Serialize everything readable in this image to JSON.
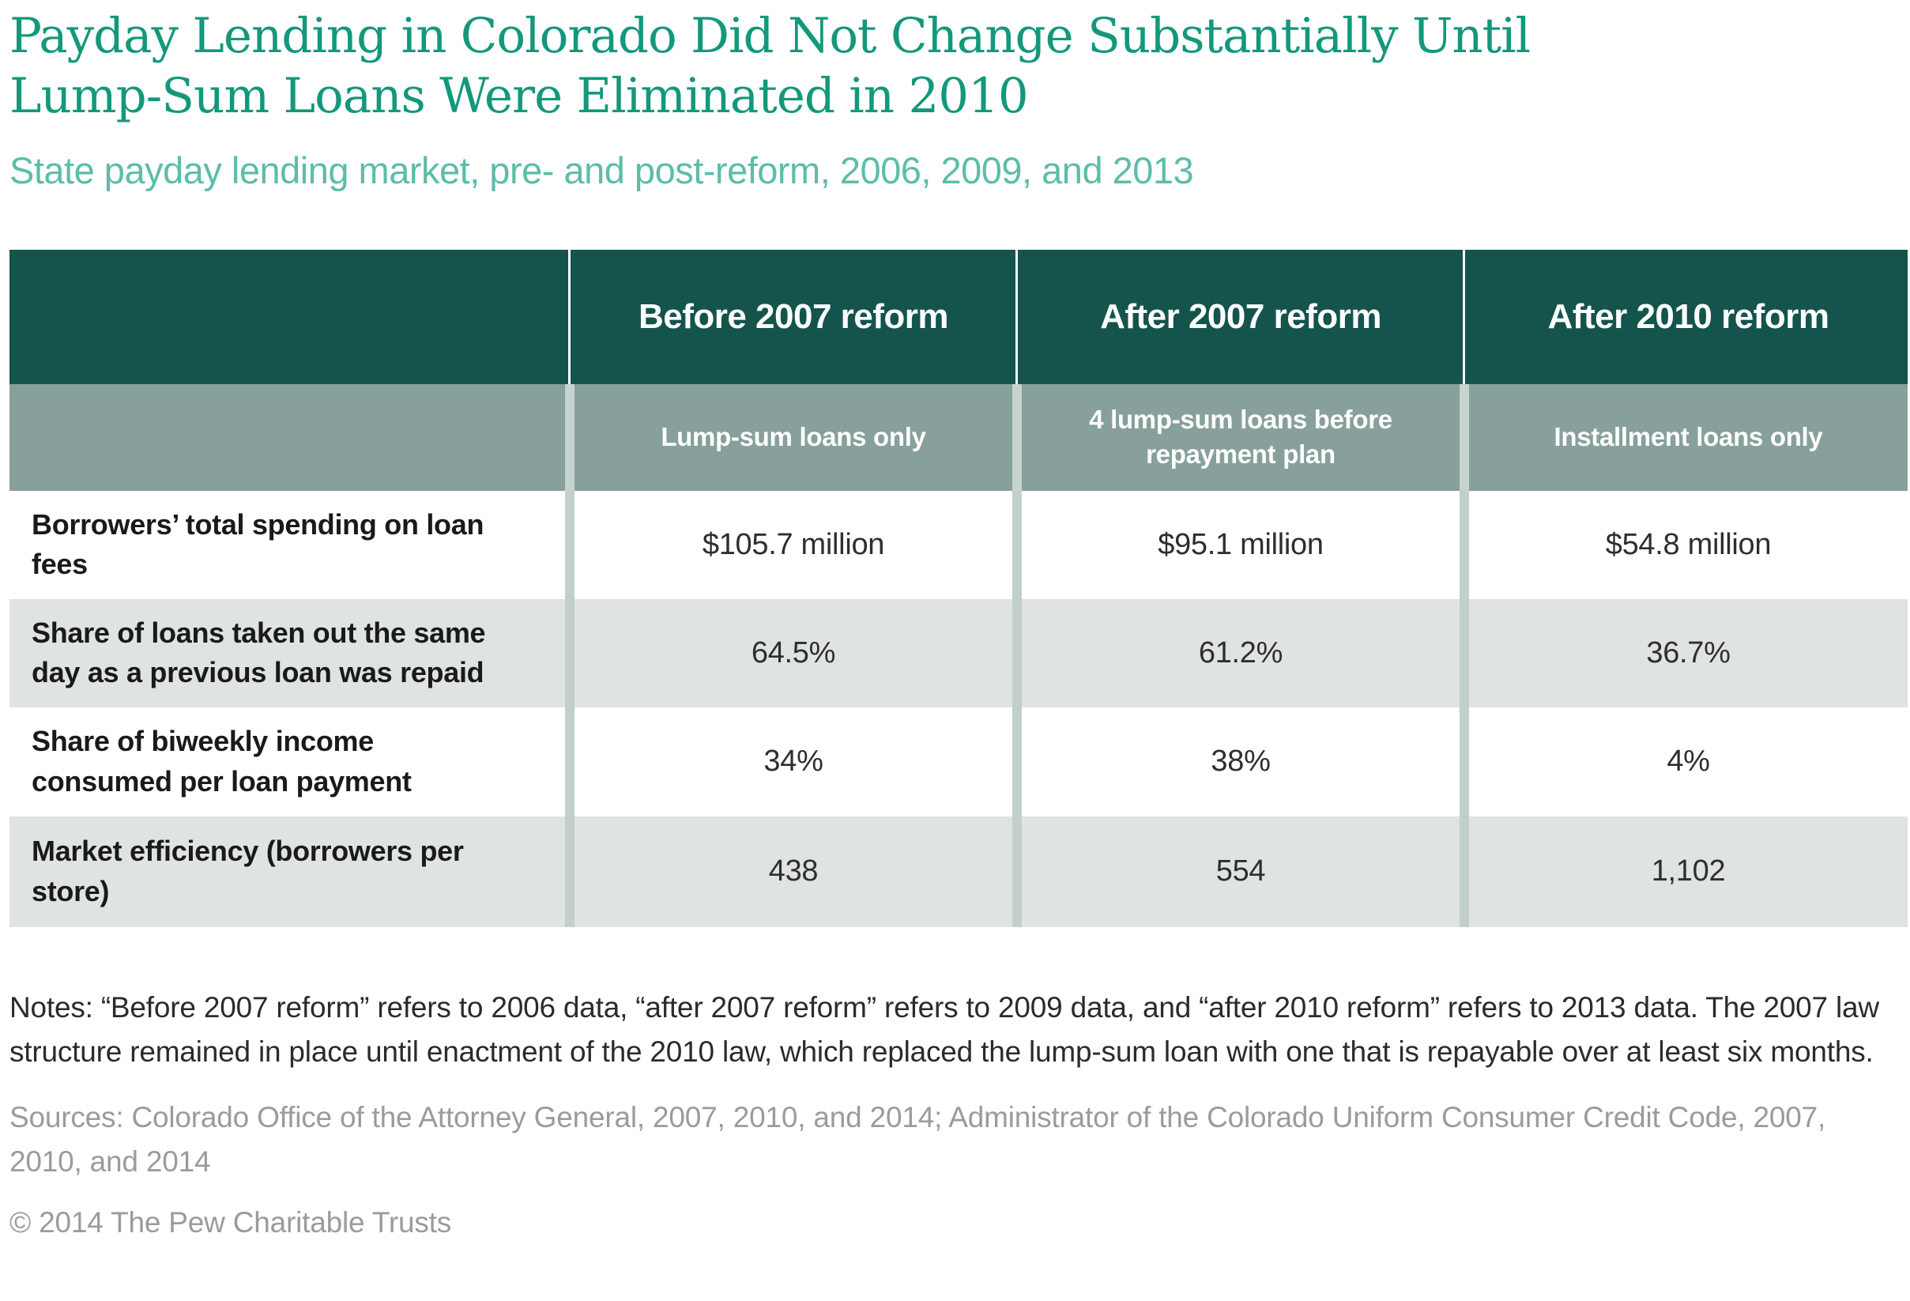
{
  "header": {
    "title_lines": [
      "Payday Lending in Colorado Did Not Change Substantially Until",
      "Lump-Sum Loans Were Eliminated in 2010"
    ],
    "subtitle": "State payday lending market, pre- and post-reform, 2006, 2009, and 2013"
  },
  "chart_data": {
    "type": "table",
    "title": "Payday Lending in Colorado Did Not Change Substantially Until Lump-Sum Loans Were Eliminated in 2010",
    "subtitle": "State payday lending market, pre- and post-reform, 2006, 2009, and 2013",
    "columns": [
      "Before 2007 reform",
      "After 2007 reform",
      "After 2010 reform"
    ],
    "column_subheads": [
      "Lump-sum loans only",
      "4 lump-sum loans before repayment plan",
      "Installment loans only"
    ],
    "rows": [
      {
        "label": "Borrowers’ total spending on loan fees",
        "values": [
          "$105.7 million",
          "$95.1 million",
          "$54.8 million"
        ],
        "numeric": [
          105.7,
          95.1,
          54.8
        ]
      },
      {
        "label": "Share of loans taken out the same day as a previous loan was repaid",
        "values": [
          "64.5%",
          "61.2%",
          "36.7%"
        ],
        "numeric": [
          64.5,
          61.2,
          36.7
        ]
      },
      {
        "label": "Share of biweekly income consumed per loan payment",
        "values": [
          "34%",
          "38%",
          "4%"
        ],
        "numeric": [
          34,
          38,
          4
        ]
      },
      {
        "label": "Market efficiency (borrowers per store)",
        "values": [
          "438",
          "554",
          "1,102"
        ],
        "numeric": [
          438,
          554,
          1102
        ]
      }
    ]
  },
  "footer": {
    "notes": "Notes: “Before 2007 reform” refers to 2006 data, “after 2007 reform” refers to 2009 data, and “after 2010 reform” refers to 2013 data. The 2007 law structure remained in place until enactment of the 2010 law, which replaced the lump-sum loan with one that is repayable over at least six months.",
    "sources": "Sources: Colorado Office of the Attorney General, 2007, 2010, and 2014; Administrator of the Colorado Uniform Consumer Credit Code, 2007, 2010, and 2014",
    "copyright": "© 2014 The Pew Charitable Trusts"
  },
  "colors": {
    "title": "#13987b",
    "subtitle": "#5cbda8",
    "header_bg": "#14544c",
    "subheader_bg": "#87a09b",
    "divider": "#c2cfcb",
    "row_alt_bg": "#dfe3e1",
    "header_text": "#ffffff",
    "body_text": "#2e2e2e",
    "muted_text": "#9b9b9b"
  }
}
